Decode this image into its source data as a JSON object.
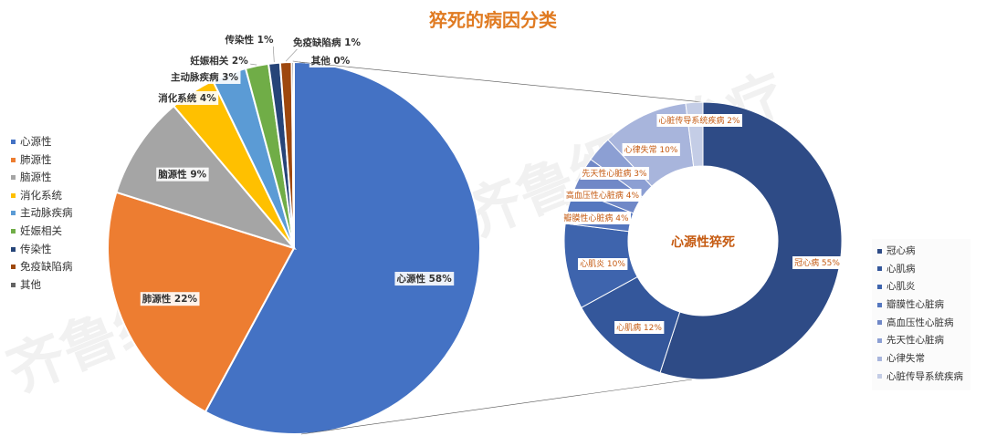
{
  "title": "猝死的病因分类",
  "chart_data": [
    {
      "type": "pie",
      "title": "猝死的病因分类",
      "categories": [
        "心源性",
        "肺源性",
        "脑源性",
        "消化系统",
        "主动脉疾病",
        "妊娠相关",
        "传染性",
        "免疫缺陷病",
        "其他"
      ],
      "values": [
        58,
        22,
        9,
        4,
        3,
        2,
        1,
        1,
        0
      ],
      "data_labels": [
        "心源性 58%",
        "肺源性 22%",
        "脑源性 9%",
        "消化系统 4%",
        "主动脉疾病 3%",
        "妊娠相关 2%",
        "传染性 1%",
        "免疫缺陷病 1%",
        "其他 0%"
      ],
      "colors": [
        "#4472c4",
        "#ed7d31",
        "#a5a5a5",
        "#ffc000",
        "#5b9bd5",
        "#70ad47",
        "#264478",
        "#9e480e",
        "#636363"
      ],
      "legend_position": "left"
    },
    {
      "type": "pie",
      "subtype": "doughnut",
      "title": "心源性猝死",
      "categories": [
        "冠心病",
        "心肌病",
        "心肌炎",
        "瓣膜性心脏病",
        "高血压性心脏病",
        "先天性心脏病",
        "心律失常",
        "心脏传导系统疾病"
      ],
      "values": [
        55,
        12,
        10,
        4,
        4,
        3,
        10,
        2
      ],
      "data_labels": [
        "冠心病 55%",
        "心肌病 12%",
        "心肌炎 10%",
        "瓣膜性心脏病 4%",
        "高血压性心脏病 4%",
        "先天性心脏病 3%",
        "心律失常 10%",
        "心脏传导系统疾病 2%"
      ],
      "colors": [
        "#2e4b86",
        "#34579b",
        "#3e64ad",
        "#5577bf",
        "#7088c7",
        "#8c9fd3",
        "#a8b5dc",
        "#c4cde6"
      ],
      "legend_position": "right"
    }
  ],
  "watermark": "齐鲁细胞治疗",
  "watermark_color": "#eeeeee"
}
